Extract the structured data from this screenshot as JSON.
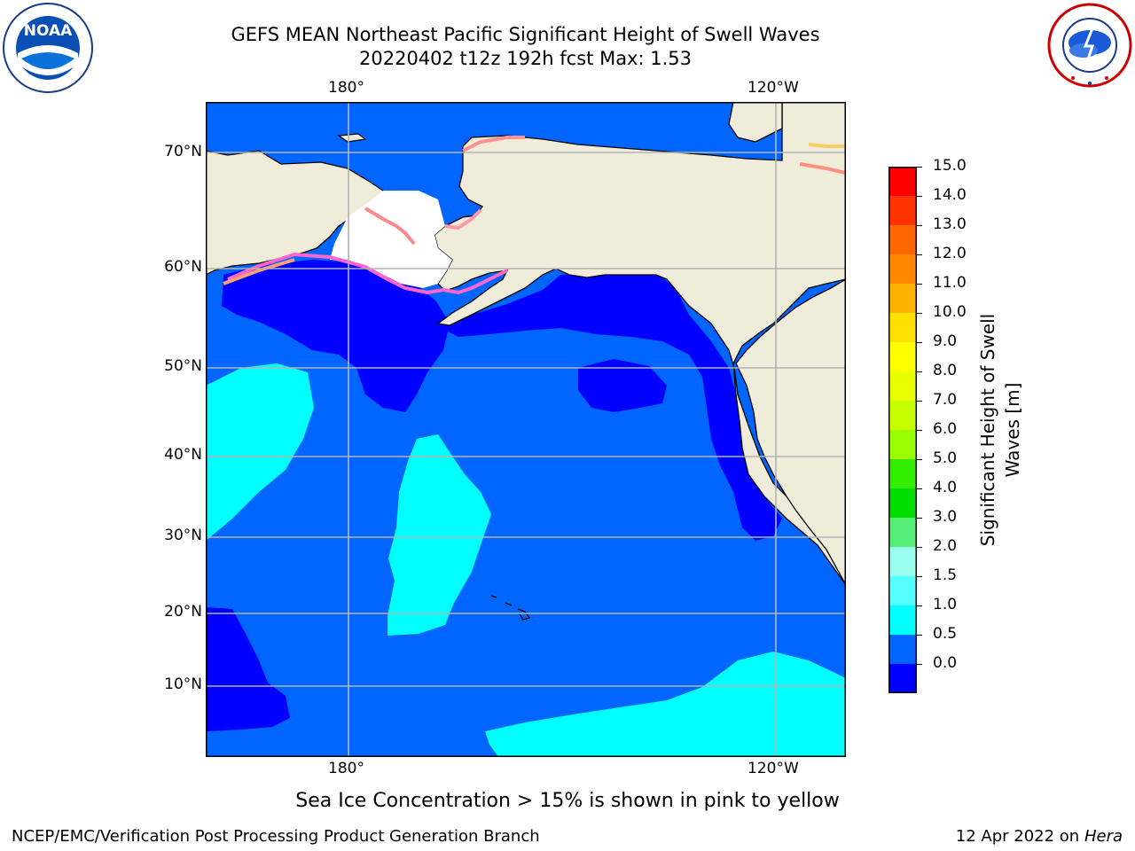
{
  "title": {
    "line1": "GEFS MEAN Northeast Pacific Significant Height of Swell Waves",
    "line2": "20220402 t12z 192h fcst   Max: 1.53"
  },
  "axes": {
    "lon_top": [
      "180°",
      "120°W"
    ],
    "lon_bottom": [
      "180°",
      "120°W"
    ],
    "lat_left": [
      "70°N",
      "60°N",
      "50°N",
      "40°N",
      "30°N",
      "20°N",
      "10°N"
    ]
  },
  "colorbar": {
    "label_line1": "Significant Height of Swell",
    "label_line2": "Waves [m]",
    "ticks": [
      "15.0",
      "14.0",
      "13.0",
      "12.0",
      "11.0",
      "10.0",
      "9.0",
      "8.0",
      "7.0",
      "6.0",
      "5.0",
      "4.0",
      "3.0",
      "2.0",
      "1.5",
      "1.0",
      "0.5",
      "0.0"
    ],
    "bins_top_to_bottom": [
      "#ff0000",
      "#ff3300",
      "#ff6600",
      "#ff8800",
      "#ffb000",
      "#ffe000",
      "#ffff00",
      "#e8ff00",
      "#c8ff00",
      "#99ff00",
      "#33ee00",
      "#00dd00",
      "#55ee77",
      "#99ffee",
      "#55ffff",
      "#00ffff",
      "#0066ff",
      "#0000ff"
    ]
  },
  "map_colors": {
    "land": "#efedda",
    "sea_ice": "#ffffff",
    "bin_0_05": "#0000ff",
    "bin_05_10": "#0066ff",
    "bin_10_15": "#00ffff",
    "grid": "#b3b3b3"
  },
  "note": "Sea Ice Concentration > 15% is shown in pink to yellow",
  "footer": {
    "left": "NCEP/EMC/Verification Post Processing Product Generation Branch",
    "right_prefix": "12 Apr 2022 on ",
    "right_italic": "Hera"
  },
  "logos": {
    "noaa_text": "NOAA",
    "nws_text": "NATIONAL WEATHER SERVICE"
  }
}
